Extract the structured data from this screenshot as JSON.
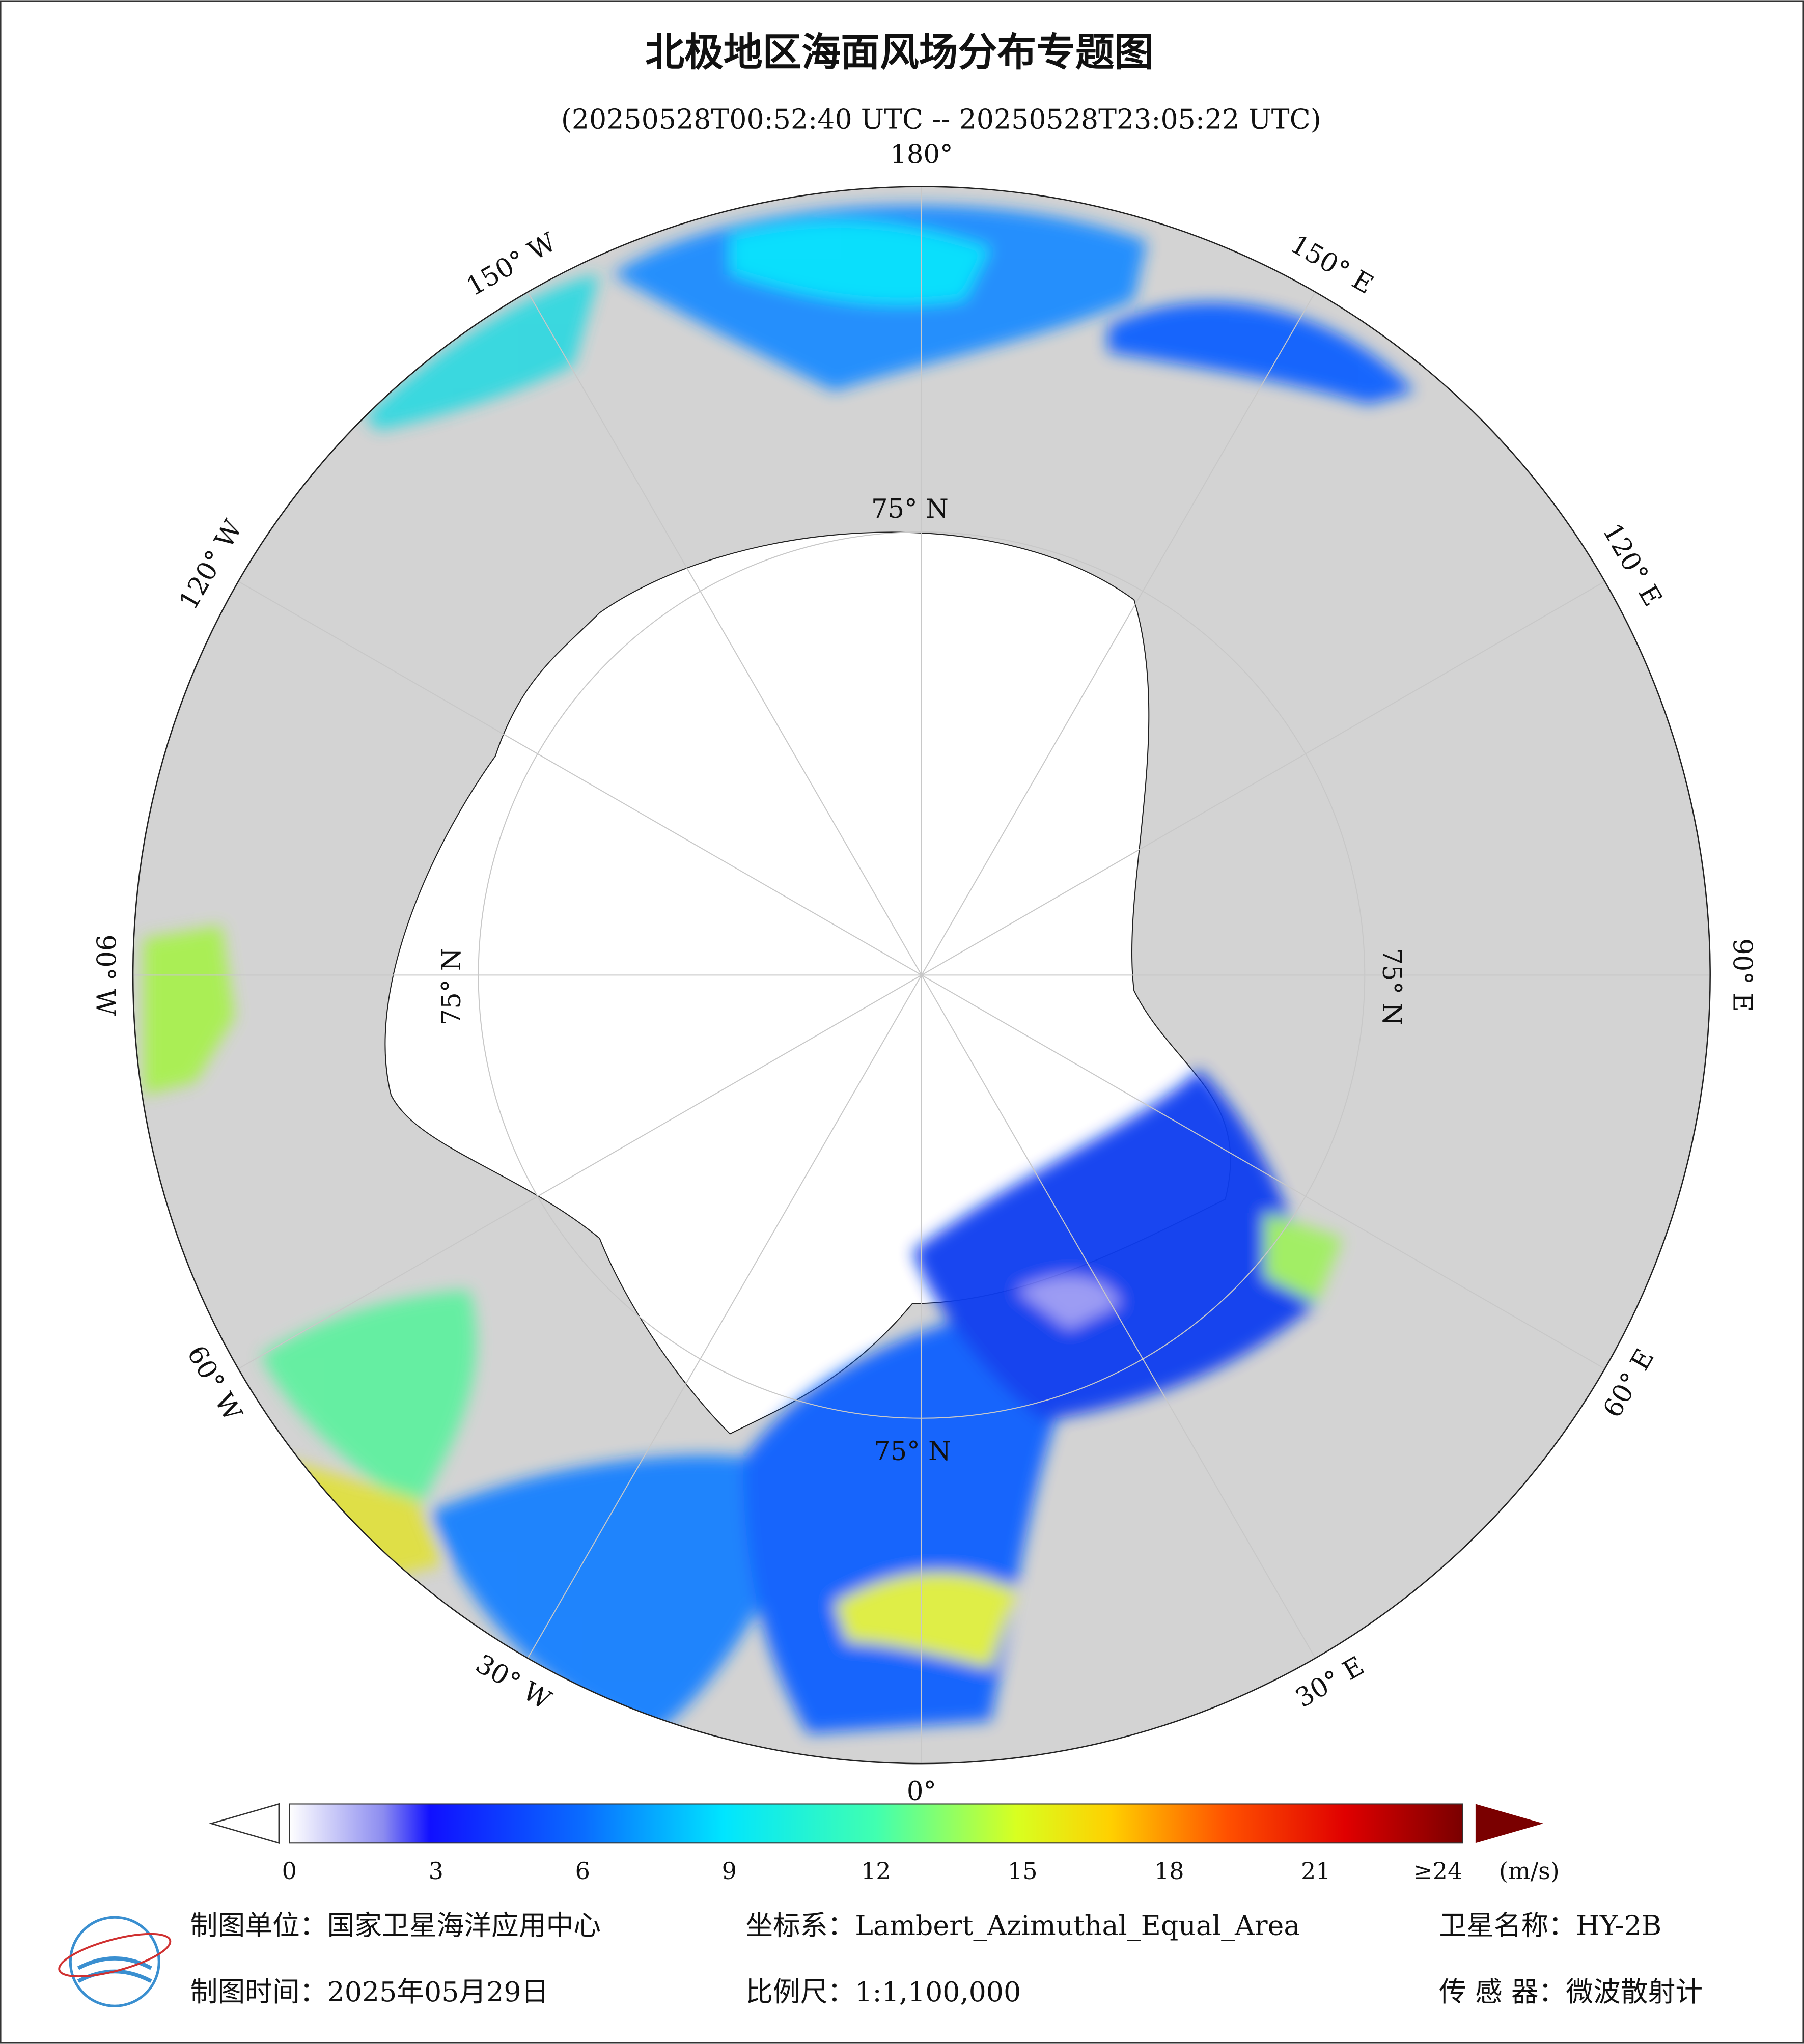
{
  "header": {
    "title": "北极地区海面风场分布专题图",
    "subtitle": "(20250528T00:52:40 UTC -- 20250528T23:05:22 UTC)"
  },
  "map": {
    "lon_labels": [
      "180°",
      "150° E",
      "120° E",
      "90° E",
      "60° E",
      "30° E",
      "0°",
      "30° W",
      "60° W",
      "90° W",
      "120° W",
      "150° W"
    ],
    "lat_labels": [
      "75° N",
      "75° N",
      "75° N",
      "75° N"
    ]
  },
  "colorbar": {
    "range": [
      0,
      24
    ],
    "ticks": [
      0,
      3,
      6,
      9,
      12,
      15,
      18,
      21,
      {
        "value": 24,
        "label": "≥24"
      }
    ],
    "unit": "(m/s)"
  },
  "footer": {
    "unit": "制图单位：国家卫星海洋应用中心",
    "crs": "坐标系：Lambert_Azimuthal_Equal_Area",
    "satellite": "卫星名称：HY-2B",
    "date": "制图时间：2025年05月29日",
    "scale": "比例尺：1:1,100,000",
    "sensor": "传 感 器：微波散射计"
  }
}
